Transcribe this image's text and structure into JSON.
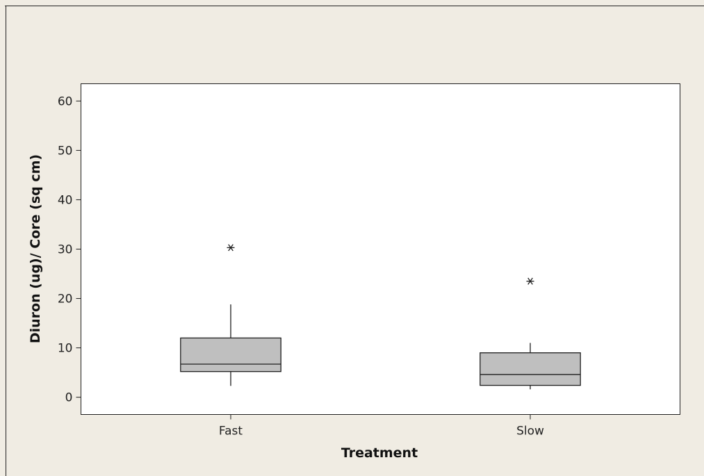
{
  "chart_data": {
    "type": "boxplot",
    "xlabel": "Treatment",
    "ylabel": "Diuron (ug)/ Core (sq cm)",
    "ylim": [
      -3.5,
      63.5
    ],
    "yticks": [
      0,
      10,
      20,
      30,
      40,
      50,
      60
    ],
    "categories": [
      "Fast",
      "Slow"
    ],
    "boxes": [
      {
        "category": "Fast",
        "whisker_low": 2.3,
        "q1": 5.2,
        "median": 6.7,
        "q3": 12.0,
        "whisker_high": 18.8,
        "outliers": [
          30.3
        ]
      },
      {
        "category": "Slow",
        "whisker_low": 1.6,
        "q1": 2.4,
        "median": 4.6,
        "q3": 9.0,
        "whisker_high": 11.0,
        "outliers": [
          23.5
        ]
      }
    ],
    "grid": false,
    "legend": "none",
    "colors": {
      "page_background": "#F0ECE3",
      "plot_background": "#FFFFFF",
      "box_fill": "#BFBFBF",
      "stroke": "#1E1E1E"
    }
  }
}
